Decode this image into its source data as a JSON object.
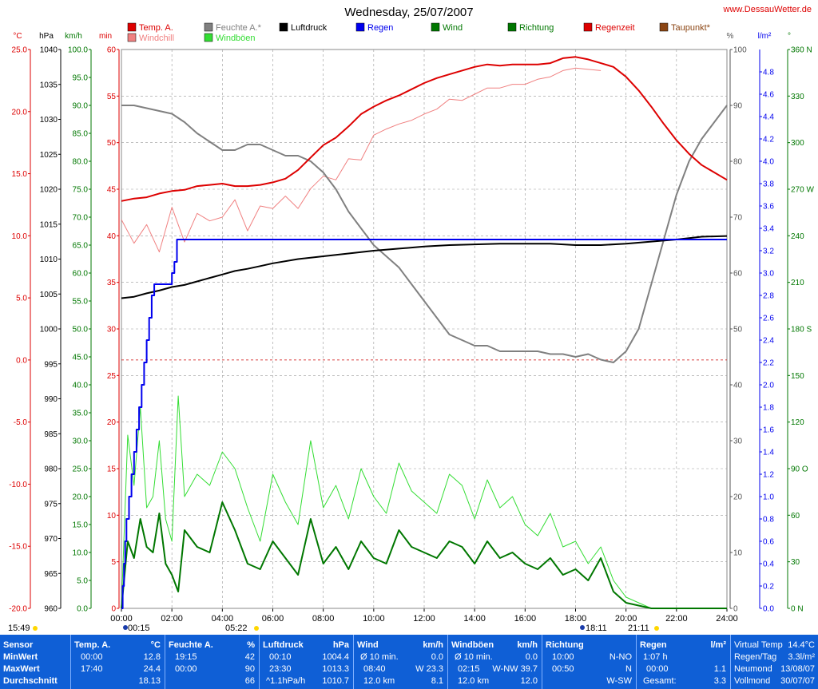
{
  "title": "Wednesday, 25/07/2007",
  "site": "www.DessauWetter.de",
  "legend": [
    {
      "label": "Temp. A.",
      "color": "#dd0000"
    },
    {
      "label": "Windchill",
      "color": "#f08080"
    },
    {
      "label": "Feuchte A.*",
      "color": "#808080"
    },
    {
      "label": "Windböen",
      "color": "#33dd33"
    },
    {
      "label": "Luftdruck",
      "color": "#000000"
    },
    {
      "label": "Regen",
      "color": "#0000ee"
    },
    {
      "label": "Wind",
      "color": "#007700"
    },
    {
      "label": "Richtung",
      "color": "#007700"
    },
    {
      "label": "Regenzeit",
      "color": "#dd0000"
    },
    {
      "label": "Taupunkt*",
      "color": "#8b4513"
    }
  ],
  "axis_units": {
    "temp": "°C",
    "press": "hPa",
    "wind": "km/h",
    "min": "min",
    "hum": "%",
    "rain": "l/m²",
    "dir": "°"
  },
  "axis_ticks": {
    "temp": [
      "25.0",
      "20.0",
      "15.0",
      "10.0",
      "5.0",
      "0.0",
      "-5.0",
      "-10.0",
      "-15.0",
      "-20.0"
    ],
    "press": [
      "1040",
      "1035",
      "1030",
      "1025",
      "1020",
      "1015",
      "1010",
      "1005",
      "1000",
      "995",
      "990",
      "985",
      "980",
      "975",
      "970",
      "965",
      "960"
    ],
    "wind": [
      "100.0",
      "95.0",
      "90.0",
      "85.0",
      "80.0",
      "75.0",
      "70.0",
      "65.0",
      "60.0",
      "55.0",
      "50.0",
      "45.0",
      "40.0",
      "35.0",
      "30.0",
      "25.0",
      "20.0",
      "15.0",
      "10.0",
      "5.0",
      "0.0"
    ],
    "min": [
      "60",
      "55",
      "50",
      "45",
      "40",
      "35",
      "30",
      "25",
      "20",
      "15",
      "10",
      "5",
      "0"
    ],
    "hum": [
      "100",
      "90",
      "80",
      "70",
      "60",
      "50",
      "40",
      "30",
      "20",
      "10",
      "0"
    ],
    "rain": [
      "4.8",
      "4.6",
      "4.4",
      "4.2",
      "4.0",
      "3.8",
      "3.6",
      "3.4",
      "3.2",
      "3.0",
      "2.8",
      "2.6",
      "2.4",
      "2.2",
      "2.0",
      "1.8",
      "1.6",
      "1.4",
      "1.2",
      "1.0",
      "0.8",
      "0.6",
      "0.4",
      "0.2",
      "0.0"
    ],
    "dir": [
      "360 N",
      "330",
      "300",
      "270 W",
      "240",
      "210",
      "180 S",
      "150",
      "120",
      "90 O",
      "60",
      "30",
      "0 N"
    ]
  },
  "x_ticks": [
    "00:00",
    "02:00",
    "04:00",
    "06:00",
    "08:00",
    "10:00",
    "12:00",
    "14:00",
    "16:00",
    "18:00",
    "20:00",
    "22:00",
    "24:00"
  ],
  "sun_markers": {
    "sunrise": "15:49",
    "moonrise": "00:15",
    "moonset": "05:22",
    "moon2": "18:11",
    "sunset": "21:11"
  },
  "chart_data": {
    "type": "line",
    "title": "Wednesday, 25/07/2007",
    "x_unit": "hour of day",
    "xlim": [
      0,
      24
    ],
    "series": [
      {
        "name": "Temp. A.",
        "unit": "°C",
        "ylim": [
          -20,
          25
        ],
        "x": [
          0,
          0.5,
          1,
          1.5,
          2,
          2.5,
          3,
          3.5,
          4,
          4.5,
          5,
          5.5,
          6,
          6.5,
          7,
          7.5,
          8,
          8.5,
          9,
          9.5,
          10,
          10.5,
          11,
          11.5,
          12,
          12.5,
          13,
          13.5,
          14,
          14.5,
          15,
          15.5,
          16,
          16.5,
          17,
          17.5,
          18,
          18.5,
          19,
          19.5,
          20,
          20.5,
          21,
          21.5,
          22,
          22.5,
          23,
          23.5,
          24
        ],
        "values": [
          12.8,
          13.0,
          13.1,
          13.4,
          13.6,
          13.7,
          14.0,
          14.1,
          14.2,
          14.0,
          14.0,
          14.1,
          14.3,
          14.6,
          15.3,
          16.3,
          17.3,
          17.9,
          18.8,
          19.8,
          20.4,
          20.9,
          21.3,
          21.8,
          22.3,
          22.7,
          23.0,
          23.3,
          23.6,
          23.8,
          23.7,
          23.8,
          23.8,
          23.8,
          23.9,
          24.3,
          24.4,
          24.2,
          23.9,
          23.6,
          22.8,
          21.7,
          20.4,
          19.0,
          17.7,
          16.6,
          15.7,
          15.1,
          14.5
        ]
      },
      {
        "name": "Windchill",
        "unit": "°C",
        "ylim": [
          -20,
          25
        ],
        "x": [
          0,
          0.5,
          1,
          1.5,
          2,
          2.5,
          3,
          3.5,
          4,
          4.5,
          5,
          5.5,
          6,
          6.5,
          7,
          7.5,
          8,
          8.5,
          9,
          9.5,
          10,
          10.5,
          11,
          11.5,
          12,
          12.5,
          13,
          13.5,
          14,
          14.5,
          15,
          15.5,
          16,
          16.5,
          17,
          17.5,
          18,
          18.5,
          19
        ],
        "values": [
          11.3,
          9.4,
          10.9,
          8.7,
          12.3,
          9.5,
          11.8,
          11.2,
          11.5,
          12.9,
          10.4,
          12.4,
          12.2,
          13.2,
          12.2,
          13.8,
          14.8,
          14.5,
          16.2,
          16.1,
          18.1,
          18.6,
          19.0,
          19.3,
          19.8,
          20.2,
          21.0,
          20.9,
          21.4,
          21.9,
          21.9,
          22.2,
          22.2,
          22.6,
          22.8,
          23.3,
          23.5,
          23.4,
          23.3
        ]
      },
      {
        "name": "Feuchte A.*",
        "unit": "%",
        "ylim": [
          0,
          100
        ],
        "x": [
          0,
          0.5,
          1,
          1.5,
          2,
          2.5,
          3,
          3.5,
          4,
          4.5,
          5,
          5.5,
          6,
          6.5,
          7,
          7.5,
          8,
          8.5,
          9,
          9.5,
          10,
          10.5,
          11,
          11.5,
          12,
          12.5,
          13,
          13.5,
          14,
          14.5,
          15,
          15.5,
          16,
          16.5,
          17,
          17.5,
          18,
          18.5,
          19,
          19.5,
          20,
          20.5,
          21,
          21.5,
          22,
          22.5,
          23,
          23.5,
          24
        ],
        "values": [
          90,
          90,
          89.5,
          89,
          88.5,
          87,
          85,
          83.5,
          82,
          82,
          83,
          83,
          82,
          81,
          81,
          80,
          78,
          75,
          71,
          68,
          65,
          63,
          61,
          58,
          55,
          52,
          49,
          48,
          47,
          47,
          46,
          46,
          46,
          46,
          45.5,
          45.5,
          45,
          45.5,
          44.5,
          44,
          46,
          50,
          58,
          66,
          74,
          80,
          84,
          87,
          90
        ]
      },
      {
        "name": "Luftdruck",
        "unit": "hPa",
        "ylim": [
          960,
          1040
        ],
        "x": [
          0,
          0.5,
          1,
          1.5,
          2,
          2.5,
          3,
          3.5,
          4,
          4.5,
          5,
          5.5,
          6,
          7,
          8,
          9,
          10,
          11,
          12,
          13,
          14,
          15,
          16,
          17,
          18,
          19,
          20,
          21,
          22,
          23,
          24
        ],
        "values": [
          1004.4,
          1004.6,
          1005.1,
          1005.5,
          1006.0,
          1006.3,
          1006.8,
          1007.3,
          1007.8,
          1008.3,
          1008.6,
          1009.0,
          1009.4,
          1010.0,
          1010.4,
          1010.8,
          1011.2,
          1011.5,
          1011.8,
          1012.0,
          1012.1,
          1012.2,
          1012.2,
          1012.2,
          1012.0,
          1012.0,
          1012.2,
          1012.5,
          1012.8,
          1013.2,
          1013.3
        ]
      },
      {
        "name": "Regen",
        "unit": "l/m²",
        "ylim": [
          0,
          5
        ],
        "x": [
          0,
          0.05,
          0.1,
          0.15,
          0.2,
          0.3,
          0.4,
          0.5,
          0.6,
          0.7,
          0.8,
          0.9,
          1.0,
          1.1,
          1.2,
          1.3,
          1.5,
          1.7,
          1.9,
          2.0,
          2.1,
          2.2,
          2.3,
          3,
          6,
          12,
          18,
          24
        ],
        "values": [
          0,
          0.2,
          0.4,
          0.6,
          0.8,
          1.0,
          1.2,
          1.4,
          1.6,
          1.8,
          2.0,
          2.2,
          2.4,
          2.6,
          2.8,
          2.9,
          2.9,
          2.9,
          2.9,
          3.0,
          3.1,
          3.3,
          3.3,
          3.3,
          3.3,
          3.3,
          3.3,
          3.3
        ]
      },
      {
        "name": "Wind",
        "unit": "km/h",
        "ylim": [
          0,
          100
        ],
        "x": [
          0,
          0.25,
          0.5,
          0.75,
          1,
          1.25,
          1.5,
          1.75,
          2,
          2.25,
          2.5,
          3,
          3.5,
          4,
          4.5,
          5,
          5.5,
          6,
          6.5,
          7,
          7.5,
          8,
          8.5,
          9,
          9.5,
          10,
          10.5,
          11,
          11.5,
          12,
          12.5,
          13,
          13.5,
          14,
          14.5,
          15,
          15.5,
          16,
          16.5,
          17,
          17.5,
          18,
          18.5,
          19,
          19.5,
          20,
          20.5,
          21,
          22,
          23,
          24
        ],
        "values": [
          0,
          12,
          9,
          16,
          11,
          10,
          17,
          8,
          6,
          3,
          14,
          11,
          10,
          19,
          14,
          8,
          7,
          12,
          9,
          6,
          16,
          8,
          11,
          7,
          12,
          9,
          8,
          14,
          11,
          10,
          9,
          12,
          11,
          8,
          12,
          9,
          10,
          8,
          7,
          9,
          6,
          7,
          5,
          9,
          3,
          1,
          0.5,
          0,
          0,
          0,
          0
        ]
      },
      {
        "name": "Windböen",
        "unit": "km/h",
        "ylim": [
          0,
          100
        ],
        "x": [
          0,
          0.25,
          0.5,
          0.75,
          1,
          1.25,
          1.5,
          1.75,
          2,
          2.25,
          2.5,
          3,
          3.5,
          4,
          4.5,
          5,
          5.5,
          6,
          6.5,
          7,
          7.5,
          8,
          8.5,
          9,
          9.5,
          10,
          10.5,
          11,
          11.5,
          12,
          12.5,
          13,
          13.5,
          14,
          14.5,
          15,
          15.5,
          16,
          16.5,
          17,
          17.5,
          18,
          18.5,
          19,
          19.5,
          20,
          20.5,
          21,
          22,
          23,
          24
        ],
        "values": [
          0,
          31,
          22,
          36,
          18,
          20,
          30,
          16,
          12,
          38,
          20,
          24,
          22,
          28,
          25,
          18,
          12,
          24,
          19,
          15,
          30,
          18,
          22,
          16,
          25,
          20,
          17,
          26,
          21,
          19,
          17,
          24,
          22,
          16,
          23,
          18,
          20,
          15,
          13,
          17,
          11,
          12,
          8,
          11,
          5,
          2,
          1,
          0,
          0,
          0,
          0
        ]
      }
    ]
  },
  "summary": {
    "sensor": {
      "head": "Sensor",
      "min": "MinWert",
      "max": "MaxWert",
      "avg": "Durchschnitt"
    },
    "temp": {
      "head": "Temp. A.",
      "unit": "°C",
      "min_t": "00:00",
      "min_v": "12.8",
      "max_t": "17:40",
      "max_v": "24.4",
      "avg_v": "18.13"
    },
    "hum": {
      "head": "Feuchte A.",
      "unit": "%",
      "min_t": "19:15",
      "min_v": "42",
      "max_t": "00:00",
      "max_v": "90",
      "avg_v": "66"
    },
    "press": {
      "head": "Luftdruck",
      "unit": "hPa",
      "min_t": "00:10",
      "min_v": "1004.4",
      "max_t": "23:30",
      "max_v": "1013.3",
      "avg_t": "^1.1hPa/h",
      "avg_v": "1010.7"
    },
    "wind": {
      "head": "Wind",
      "unit": "km/h",
      "min_t": "Ø 10 min.",
      "min_v": "0.0",
      "max_t": "08:40",
      "max_v": "W 23.3",
      "avg_t": "12.0 km",
      "avg_v": "8.1"
    },
    "gust": {
      "head": "Windböen",
      "unit": "km/h",
      "min_t": "Ø 10 min.",
      "min_v": "0.0",
      "max_t": "02:15",
      "max_v": "W-NW 39.7",
      "avg_t": "12.0 km",
      "avg_v": "12.0"
    },
    "dir": {
      "head": "Richtung",
      "min_t": "10:00",
      "min_v": "N-NO",
      "max_t": "00:50",
      "max_v": "N",
      "avg_v": "W-SW"
    },
    "rain": {
      "head": "Regen",
      "unit": "l/m²",
      "min_t": "1:07 h",
      "min_v": "",
      "max_t": "00:00",
      "max_v": "1.1",
      "avg_t": "Gesamt:",
      "avg_v": "3.3"
    },
    "extra": {
      "r1l": "Virtual Temp",
      "r1v": "14.4°C",
      "r2l": "Regen/Tag",
      "r2v": "3.3l/m²",
      "r3l": "Neumond",
      "r3v": "13/08/07",
      "r4l": "Vollmond",
      "r4v": "30/07/07"
    }
  }
}
